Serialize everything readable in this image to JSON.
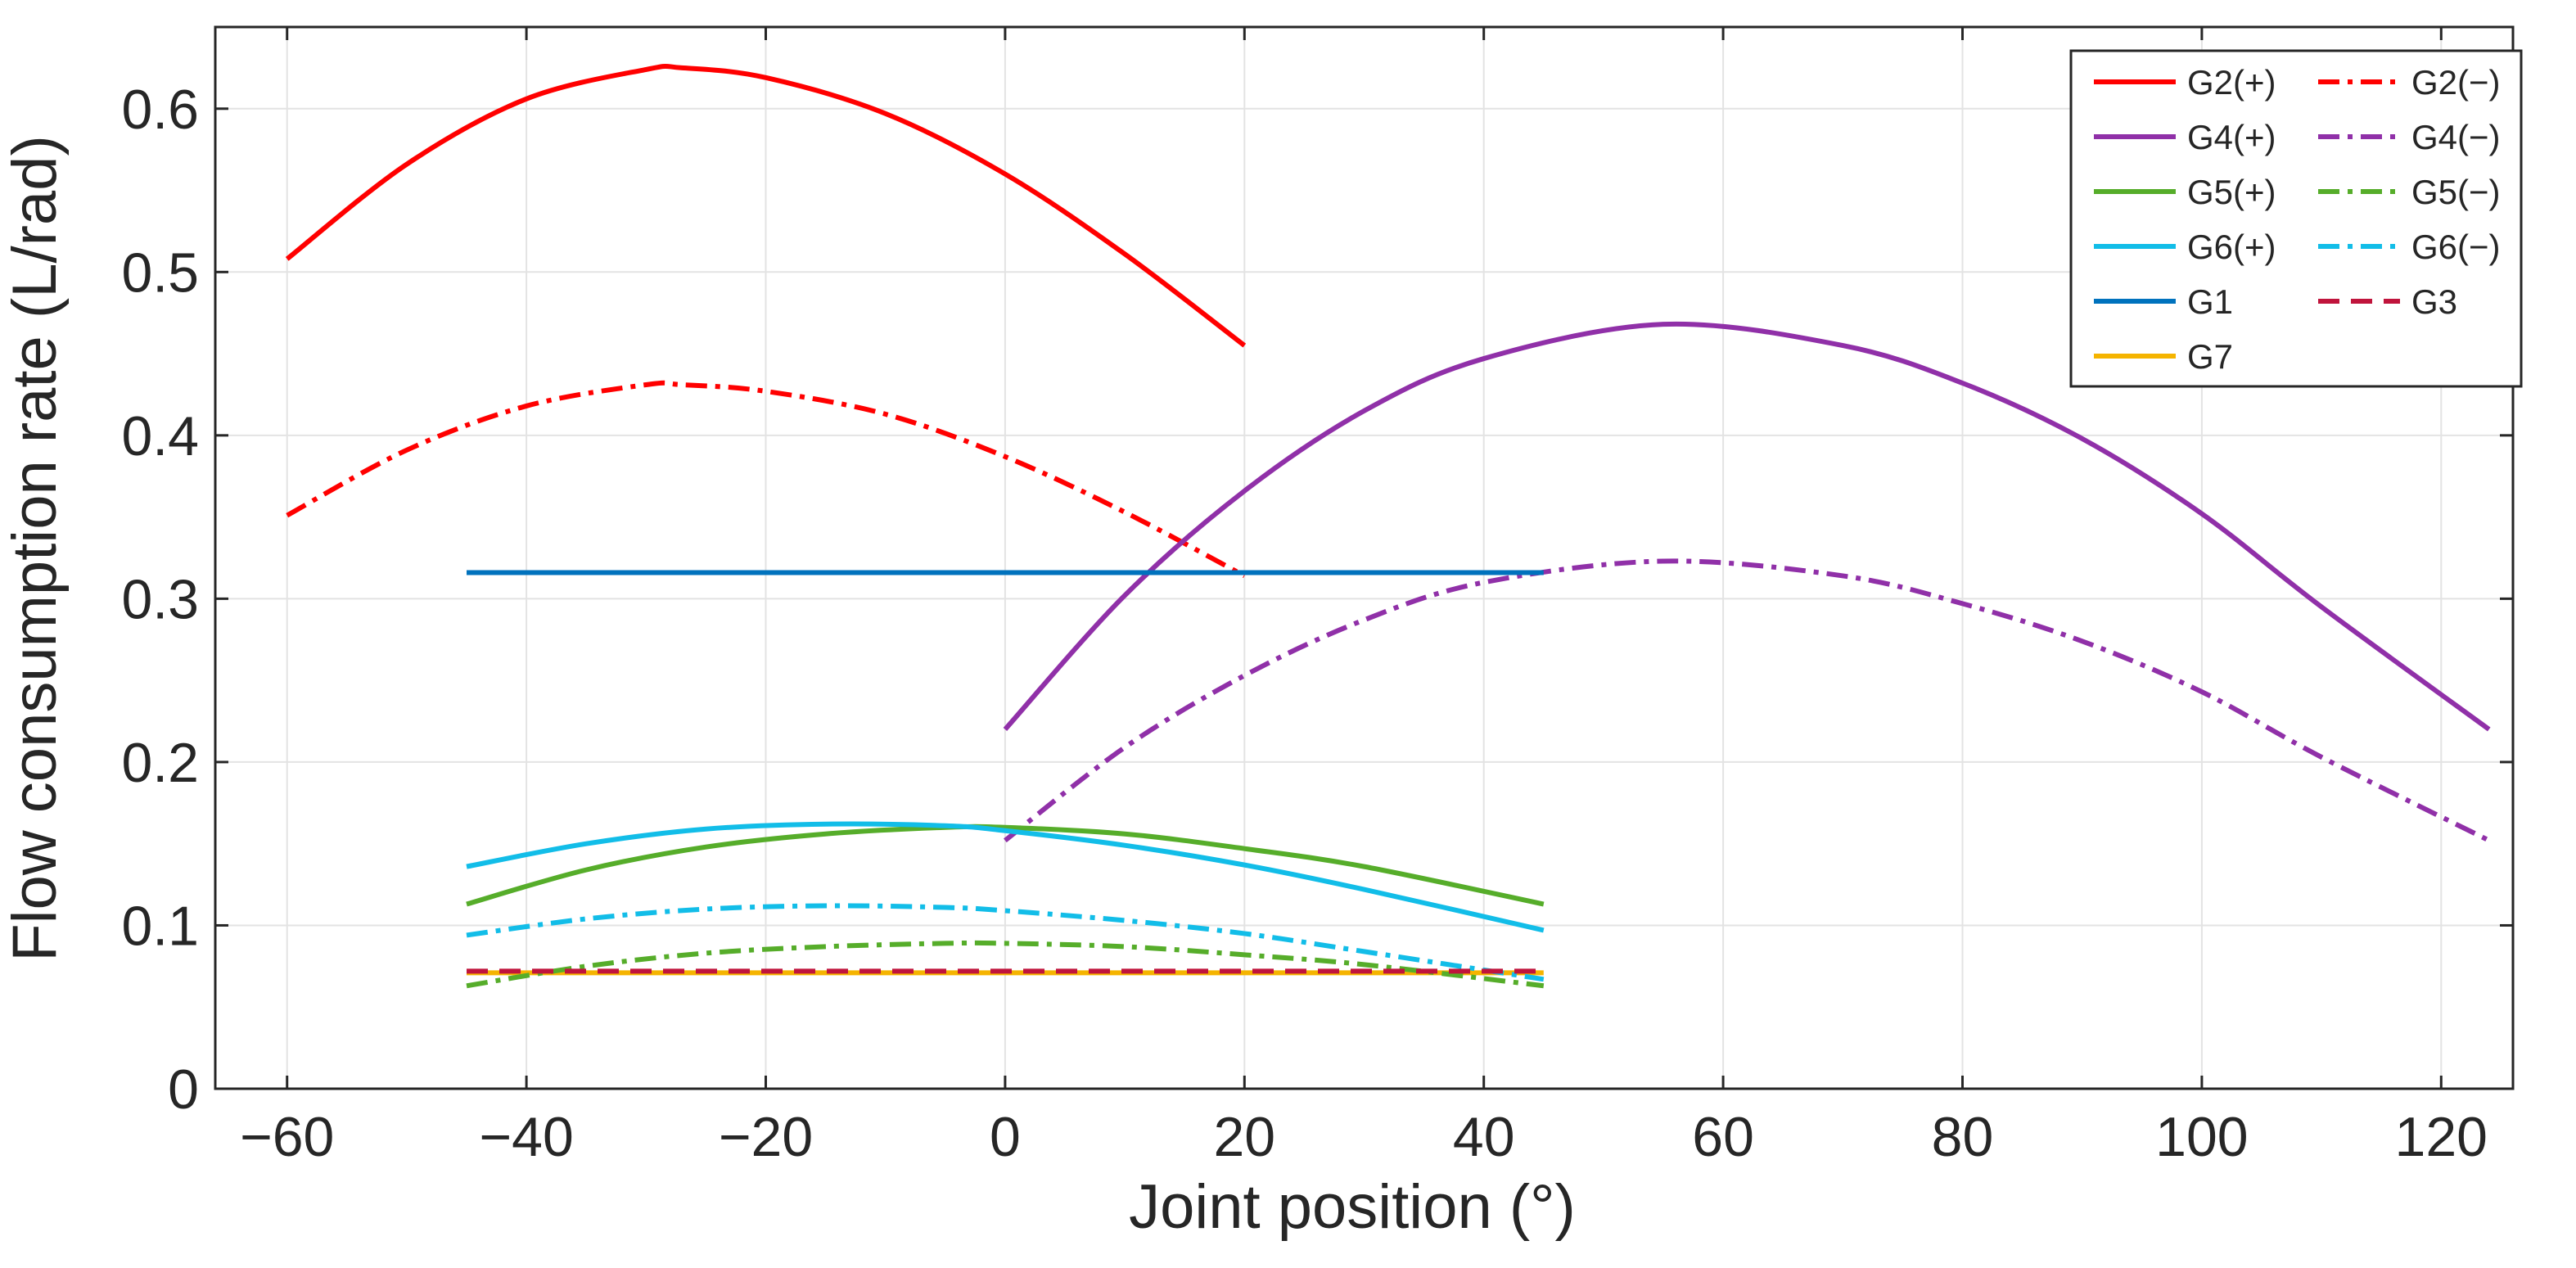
{
  "chart_data": {
    "type": "line",
    "title": "",
    "xlabel": "Joint position (°)",
    "ylabel": "Flow consumption rate (L/rad)",
    "xlim": [
      -66,
      126
    ],
    "ylim": [
      0,
      0.65
    ],
    "xticks": [
      -60,
      -40,
      -20,
      0,
      20,
      40,
      60,
      80,
      100,
      120
    ],
    "xtick_labels": [
      "−60",
      "−40",
      "−20",
      "0",
      "20",
      "40",
      "60",
      "80",
      "100",
      "120"
    ],
    "yticks": [
      0,
      0.1,
      0.2,
      0.3,
      0.4,
      0.5,
      0.6
    ],
    "ytick_labels": [
      "0",
      "0.1",
      "0.2",
      "0.3",
      "0.4",
      "0.5",
      "0.6"
    ],
    "grid": true,
    "legend_position": "top-right",
    "legend_columns": 2,
    "series": [
      {
        "name": "G2(+)",
        "color": "#ff0000",
        "dash": "solid",
        "x": [
          -60,
          -50,
          -40,
          -30,
          -27,
          -20,
          -10,
          0,
          10,
          20
        ],
        "y": [
          0.508,
          0.566,
          0.606,
          0.624,
          0.625,
          0.619,
          0.597,
          0.56,
          0.511,
          0.455
        ]
      },
      {
        "name": "G2(−)",
        "color": "#ff0000",
        "dash": "dashdot",
        "x": [
          -60,
          -50,
          -40,
          -30,
          -27,
          -20,
          -10,
          0,
          10,
          20
        ],
        "y": [
          0.351,
          0.391,
          0.418,
          0.431,
          0.431,
          0.427,
          0.413,
          0.387,
          0.353,
          0.314
        ]
      },
      {
        "name": "G4(+)",
        "color": "#9030a8",
        "dash": "solid",
        "x": [
          0,
          10,
          20,
          30,
          40,
          55,
          70,
          80,
          90,
          100,
          110,
          124
        ],
        "y": [
          0.22,
          0.302,
          0.366,
          0.415,
          0.447,
          0.468,
          0.455,
          0.432,
          0.398,
          0.352,
          0.295,
          0.22
        ]
      },
      {
        "name": "G4(−)",
        "color": "#9030a8",
        "dash": "dashdot",
        "x": [
          0,
          10,
          20,
          30,
          40,
          55,
          70,
          80,
          90,
          100,
          110,
          124
        ],
        "y": [
          0.152,
          0.209,
          0.253,
          0.287,
          0.31,
          0.323,
          0.314,
          0.297,
          0.274,
          0.243,
          0.203,
          0.152
        ]
      },
      {
        "name": "G5(+)",
        "color": "#56ad2a",
        "dash": "solid",
        "x": [
          -45,
          -35,
          -25,
          -15,
          -5,
          0,
          10,
          20,
          30,
          45
        ],
        "y": [
          0.113,
          0.134,
          0.148,
          0.156,
          0.16,
          0.16,
          0.156,
          0.147,
          0.136,
          0.113
        ]
      },
      {
        "name": "G5(−)",
        "color": "#56ad2a",
        "dash": "dashdot",
        "x": [
          -45,
          -35,
          -25,
          -15,
          -5,
          0,
          10,
          20,
          30,
          45
        ],
        "y": [
          0.063,
          0.075,
          0.083,
          0.087,
          0.089,
          0.089,
          0.087,
          0.082,
          0.076,
          0.063
        ]
      },
      {
        "name": "G6(+)",
        "color": "#12bde8",
        "dash": "solid",
        "x": [
          -45,
          -35,
          -25,
          -15,
          -5,
          0,
          10,
          20,
          30,
          45
        ],
        "y": [
          0.136,
          0.15,
          0.159,
          0.162,
          0.161,
          0.158,
          0.149,
          0.137,
          0.122,
          0.097
        ]
      },
      {
        "name": "G6(−)",
        "color": "#12bde8",
        "dash": "dashdot",
        "x": [
          -45,
          -35,
          -25,
          -15,
          -5,
          0,
          10,
          20,
          30,
          45
        ],
        "y": [
          0.094,
          0.104,
          0.11,
          0.112,
          0.111,
          0.109,
          0.103,
          0.095,
          0.084,
          0.067
        ]
      },
      {
        "name": "G1",
        "color": "#0072bd",
        "dash": "solid",
        "x": [
          -45,
          45
        ],
        "y": [
          0.316,
          0.316
        ]
      },
      {
        "name": "G3",
        "color": "#c0143c",
        "dash": "dashed",
        "x": [
          -45,
          45
        ],
        "y": [
          0.072,
          0.072
        ]
      },
      {
        "name": "G7",
        "color": "#f5b400",
        "dash": "solid",
        "x": [
          -45,
          45
        ],
        "y": [
          0.071,
          0.071
        ]
      }
    ],
    "legend_order": [
      "G2(+)",
      "G2(−)",
      "G4(+)",
      "G4(−)",
      "G5(+)",
      "G5(−)",
      "G6(+)",
      "G6(−)",
      "G1",
      "G3",
      "G7"
    ]
  }
}
